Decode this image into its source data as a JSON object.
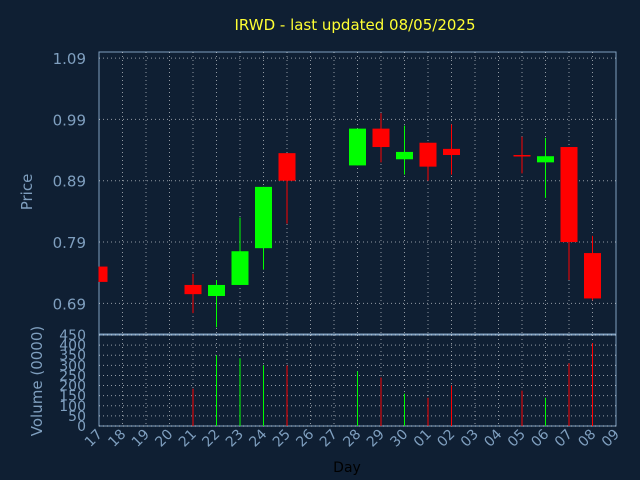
{
  "chart_data": {
    "type": "candlestick",
    "title": "IRWD - last updated 08/05/2025",
    "xlabel": "Day",
    "ylabel": "Price",
    "volume_label": "Volume (0000)",
    "price_ticks": [
      "1.09",
      "0.99",
      "0.89",
      "0.79",
      "0.69"
    ],
    "price_tick_values": [
      1.09,
      0.99,
      0.89,
      0.79,
      0.69
    ],
    "price_range": [
      0.64,
      1.1
    ],
    "volume_ticks": [
      "450",
      "400",
      "350",
      "300",
      "250",
      "200",
      "150",
      "100",
      "50",
      "0"
    ],
    "volume_tick_values": [
      450,
      400,
      350,
      300,
      250,
      200,
      150,
      100,
      50,
      0
    ],
    "volume_range": [
      0,
      450
    ],
    "x_tick_labels": [
      "17",
      "18",
      "19",
      "20",
      "21",
      "22",
      "23",
      "24",
      "25",
      "26",
      "27",
      "28",
      "29",
      "30",
      "01",
      "02",
      "03",
      "04",
      "05",
      "06",
      "07",
      "08",
      "09"
    ],
    "grid": true,
    "colors": {
      "up": "#00ff00",
      "down": "#ff0000",
      "background": "#0f1f33",
      "plot_border": "#7f9fbf",
      "grid": "#ffffff",
      "title": "#ffff33",
      "axis_text": "#7f9fbf"
    },
    "candles": [
      {
        "day": "17",
        "open": 0.75,
        "high": 0.75,
        "low": 0.725,
        "close": 0.725,
        "volume": 0
      },
      {
        "day": "21",
        "open": 0.72,
        "high": 0.738,
        "low": 0.674,
        "close": 0.705,
        "volume": 185
      },
      {
        "day": "22",
        "open": 0.702,
        "high": 0.728,
        "low": 0.651,
        "close": 0.72,
        "volume": 350
      },
      {
        "day": "23",
        "open": 0.72,
        "high": 0.83,
        "low": 0.72,
        "close": 0.775,
        "volume": 335
      },
      {
        "day": "24",
        "open": 0.78,
        "high": 0.88,
        "low": 0.745,
        "close": 0.88,
        "volume": 300
      },
      {
        "day": "25",
        "open": 0.935,
        "high": 0.935,
        "low": 0.82,
        "close": 0.89,
        "volume": 300
      },
      {
        "day": "28",
        "open": 0.915,
        "high": 0.975,
        "low": 0.915,
        "close": 0.975,
        "volume": 270
      },
      {
        "day": "29",
        "open": 0.975,
        "high": 1.0,
        "low": 0.92,
        "close": 0.945,
        "volume": 240
      },
      {
        "day": "30",
        "open": 0.925,
        "high": 0.98,
        "low": 0.9,
        "close": 0.937,
        "volume": 160
      },
      {
        "day": "01",
        "open": 0.952,
        "high": 0.952,
        "low": 0.89,
        "close": 0.913,
        "volume": 140
      },
      {
        "day": "02",
        "open": 0.942,
        "high": 0.982,
        "low": 0.9,
        "close": 0.932,
        "volume": 200
      },
      {
        "day": "05",
        "open": 0.932,
        "high": 0.962,
        "low": 0.902,
        "close": 0.93,
        "volume": 175
      },
      {
        "day": "06",
        "open": 0.92,
        "high": 0.96,
        "low": 0.862,
        "close": 0.93,
        "volume": 140
      },
      {
        "day": "07",
        "open": 0.945,
        "high": 0.945,
        "low": 0.728,
        "close": 0.79,
        "volume": 310
      },
      {
        "day": "08",
        "open": 0.772,
        "high": 0.8,
        "low": 0.695,
        "close": 0.698,
        "volume": 410
      }
    ]
  }
}
